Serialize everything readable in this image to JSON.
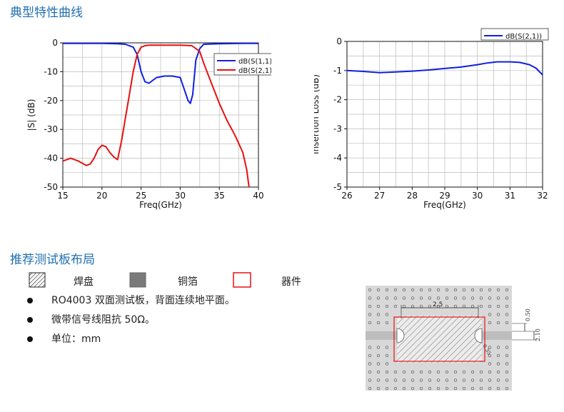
{
  "section1_title": "典型特性曲线",
  "section2_title": "推荐测试板布局",
  "legend_items": {
    "pad": "焊盘",
    "copper": "铜箔",
    "device": "器件"
  },
  "bullets": [
    "RO4003 双面测试板，背面连续地平面。",
    "微带信号线阻抗 50Ω。",
    "单位：mm"
  ],
  "dimensions": {
    "width_top": "2.5",
    "spacing": "0.50",
    "line_width": "2.10",
    "corner": "0.35"
  },
  "colors": {
    "blue": "#1020e0",
    "red": "#e81010",
    "title": "#1f6fb0"
  },
  "chart_data": [
    {
      "type": "line",
      "xlabel": "Freq(GHz)",
      "ylabel": "|S| (dB)",
      "xlim": [
        15,
        40
      ],
      "ylim": [
        -50,
        0
      ],
      "xticks": [
        "15",
        "20",
        "25",
        "30",
        "35",
        "40"
      ],
      "yticks": [
        "0",
        "-10",
        "-20",
        "-30",
        "-40",
        "-50"
      ],
      "grid": true,
      "legend_position": "top-right",
      "series": [
        {
          "name": "dB(S(1,1))",
          "color": "#1020e0",
          "x": [
            15,
            18,
            20,
            22,
            23,
            24,
            24.5,
            25,
            25.5,
            26,
            26.5,
            27,
            28,
            29,
            30,
            30.5,
            31,
            31.3,
            31.6,
            32,
            32.5,
            33,
            35,
            38,
            40
          ],
          "y": [
            -0.2,
            -0.2,
            -0.2,
            -0.3,
            -0.5,
            -1.5,
            -4,
            -10,
            -13.5,
            -14,
            -13,
            -12,
            -11.5,
            -11.5,
            -12,
            -16,
            -20,
            -21,
            -18,
            -6,
            -2,
            -0.5,
            -0.3,
            -0.2,
            -0.2
          ]
        },
        {
          "name": "dB(S(2,1))",
          "color": "#e81010",
          "x": [
            15,
            16,
            17,
            18,
            18.5,
            19,
            19.5,
            20,
            20.5,
            21,
            21.5,
            22,
            22.5,
            23,
            23.5,
            24,
            24.5,
            25,
            25.5,
            26,
            28,
            30,
            31.5,
            32.5,
            33,
            34,
            35,
            36,
            37,
            38,
            38.5,
            38.8
          ],
          "y": [
            -41,
            -40,
            -41,
            -42.5,
            -42,
            -40,
            -37,
            -35.5,
            -36,
            -38,
            -39.5,
            -40.5,
            -34,
            -26,
            -18,
            -10,
            -4,
            -1.5,
            -1,
            -0.8,
            -0.8,
            -0.8,
            -1,
            -3,
            -7,
            -14,
            -21,
            -27,
            -32,
            -38,
            -44,
            -50
          ]
        }
      ]
    },
    {
      "type": "line",
      "xlabel": "Freq(GHz)",
      "ylabel": "Insertion Loss (dB)",
      "xlim": [
        26,
        32
      ],
      "ylim": [
        -5,
        0
      ],
      "xticks": [
        "26",
        "27",
        "28",
        "29",
        "30",
        "31",
        "32"
      ],
      "yticks": [
        "0",
        "-1",
        "-2",
        "-3",
        "-4",
        "-5"
      ],
      "grid": true,
      "legend_position": "top-right",
      "series": [
        {
          "name": "dB(S(2,1))",
          "color": "#1020e0",
          "x": [
            26,
            26.5,
            27,
            27.5,
            28,
            28.5,
            29,
            29.5,
            30,
            30.3,
            30.6,
            31,
            31.3,
            31.6,
            31.8,
            32
          ],
          "y": [
            -1.0,
            -1.03,
            -1.07,
            -1.05,
            -1.02,
            -0.98,
            -0.93,
            -0.88,
            -0.8,
            -0.74,
            -0.7,
            -0.7,
            -0.72,
            -0.8,
            -0.92,
            -1.15
          ]
        }
      ]
    }
  ]
}
